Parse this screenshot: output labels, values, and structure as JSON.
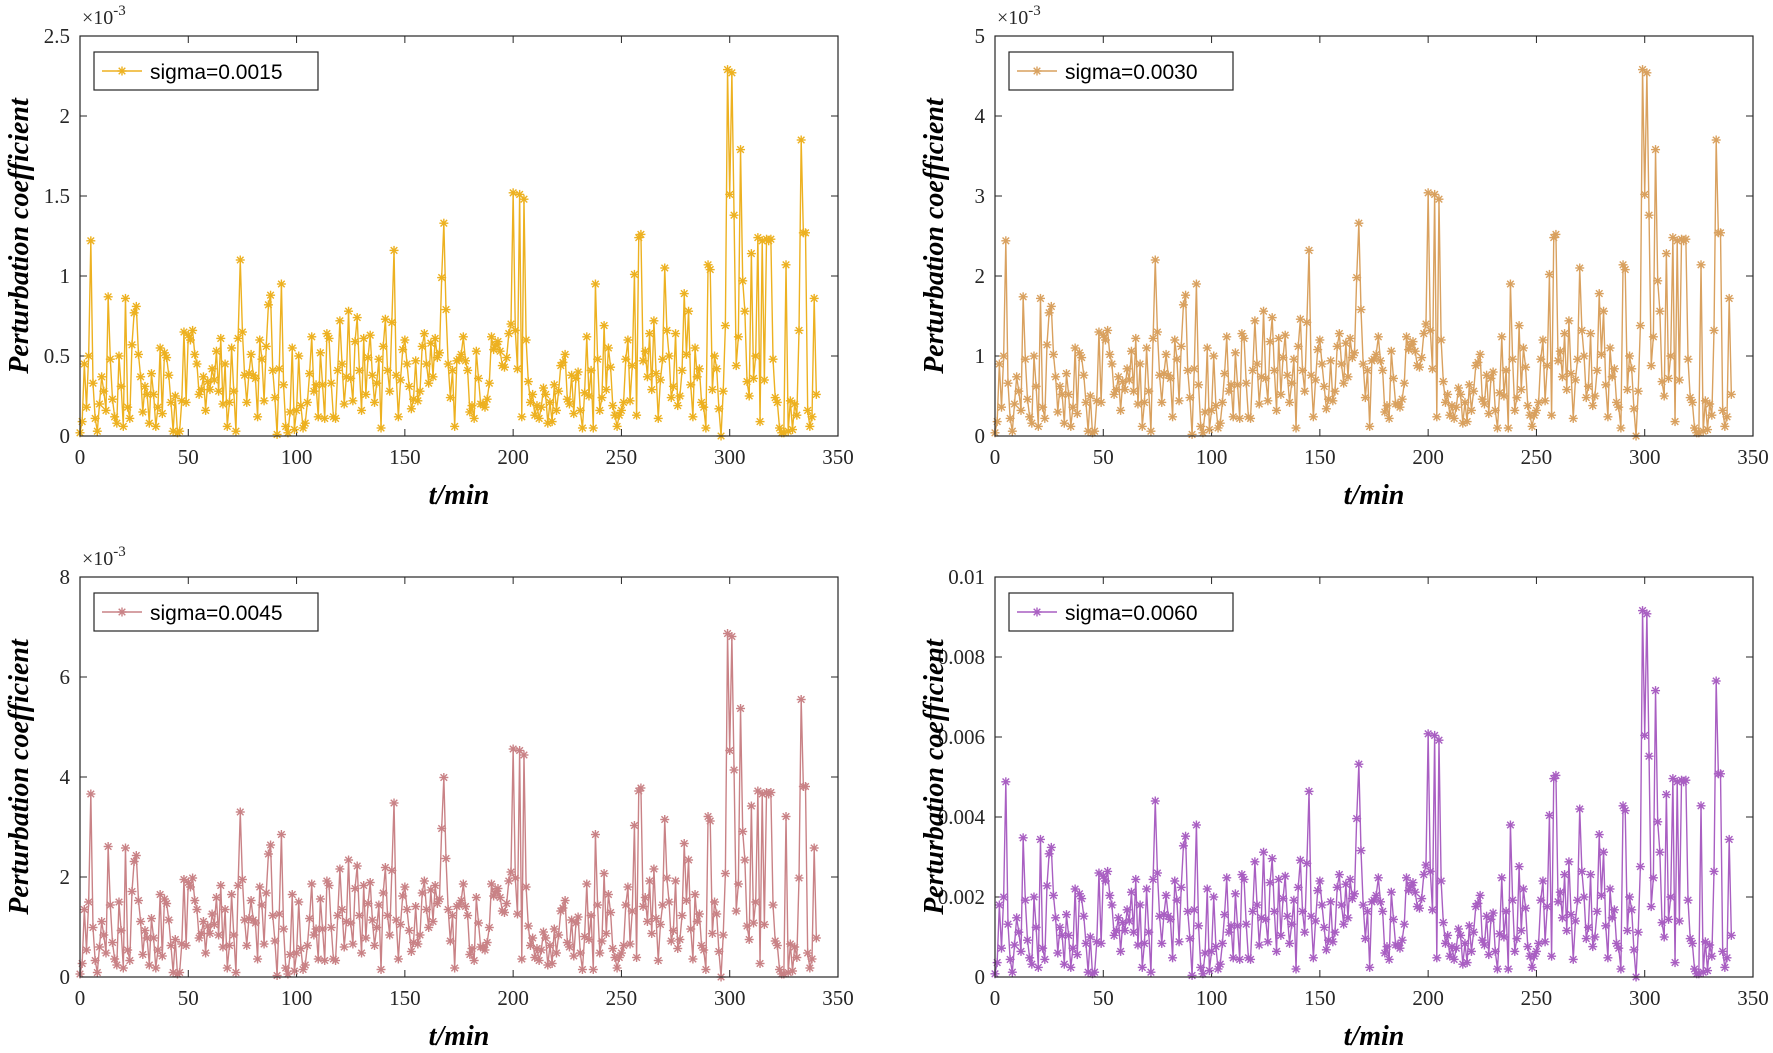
{
  "chart_data": [
    {
      "type": "line",
      "series": [
        {
          "name": "sigma=0.0015",
          "color": "#EDB120",
          "values": []
        }
      ],
      "xlabel": "t/min",
      "ylabel": "Perturbation coefficient",
      "xlim": [
        0,
        350
      ],
      "ylim": [
        0,
        0.0025
      ],
      "exponent": "×10",
      "exponent_power": "-3",
      "x_ticks": [
        "0",
        "50",
        "100",
        "150",
        "200",
        "250",
        "300",
        "350"
      ],
      "y_ticks": [
        "0",
        "0.5",
        "1",
        "1.5",
        "2",
        "2.5"
      ],
      "scale": 1.0,
      "legend_position": "top-left",
      "marker": "asterisk"
    },
    {
      "type": "line",
      "series": [
        {
          "name": "sigma=0.0030",
          "color": "#D9A15F",
          "values": []
        }
      ],
      "xlabel": "t/min",
      "ylabel": "Perturbation coefficient",
      "xlim": [
        0,
        350
      ],
      "ylim": [
        0,
        0.005
      ],
      "exponent": "×10",
      "exponent_power": "-3",
      "x_ticks": [
        "0",
        "50",
        "100",
        "150",
        "200",
        "250",
        "300",
        "350"
      ],
      "y_ticks": [
        "0",
        "1",
        "2",
        "3",
        "4",
        "5"
      ],
      "scale": 2.0,
      "legend_position": "top-left",
      "marker": "asterisk"
    },
    {
      "type": "line",
      "series": [
        {
          "name": "sigma=0.0045",
          "color": "#C98286",
          "values": []
        }
      ],
      "xlabel": "t/min",
      "ylabel": "Perturbation coefficient",
      "xlim": [
        0,
        350
      ],
      "ylim": [
        0,
        0.008
      ],
      "exponent": "×10",
      "exponent_power": "-3",
      "x_ticks": [
        "0",
        "50",
        "100",
        "150",
        "200",
        "250",
        "300",
        "350"
      ],
      "y_ticks": [
        "0",
        "2",
        "4",
        "6",
        "8"
      ],
      "scale": 3.0,
      "legend_position": "top-left",
      "marker": "asterisk"
    },
    {
      "type": "line",
      "series": [
        {
          "name": "sigma=0.0060",
          "color": "#A95FC2",
          "values": []
        }
      ],
      "xlabel": "t/min",
      "ylabel": "Perturbation coefficient",
      "xlim": [
        0,
        350
      ],
      "ylim": [
        0,
        0.01
      ],
      "exponent": "",
      "exponent_power": "",
      "x_ticks": [
        "0",
        "50",
        "100",
        "150",
        "200",
        "250",
        "300",
        "350"
      ],
      "y_ticks": [
        "0",
        "0.002",
        "0.004",
        "0.006",
        "0.008",
        "0.01"
      ],
      "scale": 4.0,
      "legend_position": "top-left",
      "marker": "asterisk"
    }
  ],
  "base_series": [
    2e-05,
    9e-05,
    0.00045,
    0.00018,
    0.0005,
    0.00122,
    0.00033,
    0.00011,
    3e-05,
    0.0002,
    0.00037,
    0.00028,
    0.00016,
    0.00087,
    0.00048,
    0.00023,
    0.00012,
    8e-05,
    0.0005,
    0.00031,
    6e-05,
    0.00086,
    0.00018,
    0.00011,
    0.00057,
    0.00077,
    0.00081,
    0.00051,
    0.00037,
    0.00015,
    0.00031,
    0.00026,
    8e-05,
    0.00039,
    0.00026,
    6e-05,
    0.00018,
    0.00055,
    0.00014,
    0.00052,
    0.00049,
    0.00038,
    0.00021,
    3e-05,
    0.00025,
    2e-05,
    3e-05,
    0.00022,
    0.00065,
    0.00021,
    0.00063,
    0.0006,
    0.00066,
    0.00051,
    0.00045,
    0.00026,
    0.00029,
    0.00037,
    0.00016,
    0.00034,
    0.00029,
    0.00042,
    0.00035,
    0.00053,
    0.00028,
    0.00061,
    0.0002,
    0.00045,
    6e-05,
    0.00021,
    0.00055,
    0.00028,
    3e-05,
    0.00061,
    0.0011,
    0.00065,
    0.00038,
    0.00021,
    0.00039,
    0.00051,
    0.00038,
    0.00036,
    0.00012,
    0.0006,
    0.00048,
    0.00022,
    0.00056,
    0.00082,
    0.00088,
    0.00041,
    0.00024,
    1e-05,
    0.00042,
    0.00095,
    0.00032,
    6e-05,
    2e-05,
    0.00015,
    0.00055,
    4e-05,
    0.00016,
    0.0005,
    0.00019,
    5e-05,
    8e-05,
    0.00021,
    0.00039,
    0.00062,
    0.00028,
    0.00032,
    0.00012,
    0.00052,
    0.00032,
    0.00011,
    0.00064,
    0.00061,
    0.00033,
    0.00012,
    0.00011,
    0.00041,
    0.00072,
    0.00045,
    0.0002,
    0.00037,
    0.00078,
    0.00036,
    0.00022,
    0.00059,
    0.00074,
    0.00041,
    0.00016,
    0.00061,
    0.00026,
    0.00049,
    0.00063,
    0.00038,
    0.00021,
    0.00033,
    0.00048,
    5e-05,
    0.00056,
    0.00073,
    0.00041,
    0.00028,
    0.00071,
    0.00116,
    0.00038,
    0.00012,
    0.00035,
    0.00054,
    0.0006,
    0.00045,
    0.00031,
    0.00017,
    0.00023,
    0.00047,
    0.00022,
    0.00028,
    0.00056,
    0.00064,
    0.00045,
    0.00033,
    0.00058,
    0.00037,
    0.00061,
    0.00049,
    0.00052,
    0.00099,
    0.00133,
    0.00079,
    0.00045,
    0.00024,
    0.00041,
    6e-05,
    0.00047,
    0.00048,
    0.00051,
    0.00062,
    0.00047,
    0.00041,
    0.00015,
    0.00019,
    0.00011,
    0.00053,
    0.00036,
    0.0002,
    0.0002,
    0.00018,
    0.00023,
    0.00033,
    0.00062,
    0.00054,
    0.00057,
    0.00059,
    0.00053,
    0.00044,
    0.00043,
    0.00049,
    0.00064,
    0.0007,
    0.00152,
    0.00066,
    0.00042,
    0.00151,
    0.00012,
    0.00148,
    0.0006,
    0.00034,
    0.00021,
    0.00026,
    0.00013,
    0.00019,
    0.00011,
    0.00018,
    0.0003,
    0.00026,
    8e-05,
    0.00021,
    9e-05,
    0.00032,
    0.00016,
    0.00028,
    0.00044,
    0.00046,
    0.00051,
    0.00023,
    0.0002,
    0.00038,
    0.00014,
    0.00036,
    0.0004,
    0.00016,
    5e-05,
    0.00027,
    0.00062,
    0.00025,
    0.00041,
    5e-05,
    0.00095,
    0.00048,
    0.00016,
    0.00024,
    0.00069,
    0.00029,
    0.00055,
    0.00043,
    0.00019,
    0.00013,
    6e-05,
    0.00013,
    0.00016,
    0.00021,
    0.00048,
    0.0006,
    0.00022,
    0.00044,
    0.00101,
    0.00013,
    0.00124,
    0.00126,
    0.00047,
    0.00053,
    0.00037,
    0.00064,
    0.00029,
    0.00072,
    0.00039,
    0.00011,
    0.00035,
    0.00048,
    0.00105,
    0.00066,
    0.0005,
    0.00024,
    0.00031,
    0.00064,
    0.00019,
    0.00025,
    0.00041,
    0.00089,
    0.00051,
    0.00078,
    0.00032,
    0.00012,
    0.00055,
    0.00037,
    0.00042,
    0.00021,
    0.00018,
    5e-05,
    0.00107,
    0.00104,
    0.00029,
    0.0005,
    0.00042,
    0.00017,
    0.0,
    0.00028,
    0.00069,
    0.00229,
    0.00151,
    0.00227,
    0.00138,
    0.00044,
    0.00062,
    0.00179,
    0.00097,
    0.00078,
    0.00034,
    0.00025,
    0.00114,
    0.00036,
    0.0005,
    0.00124,
    9e-05,
    0.00122,
    0.00035,
    0.00123,
    0.00122,
    0.00123,
    0.00048,
    0.00024,
    0.00021,
    5e-05,
    2e-05,
    2e-05,
    0.00107,
    3e-05,
    0.00022,
    4e-05,
    0.0002,
    0.00013,
    0.00066,
    0.00185,
    0.00127,
    0.00127,
    0.00016,
    6e-05,
    0.00012,
    0.00086,
    0.00026
  ]
}
